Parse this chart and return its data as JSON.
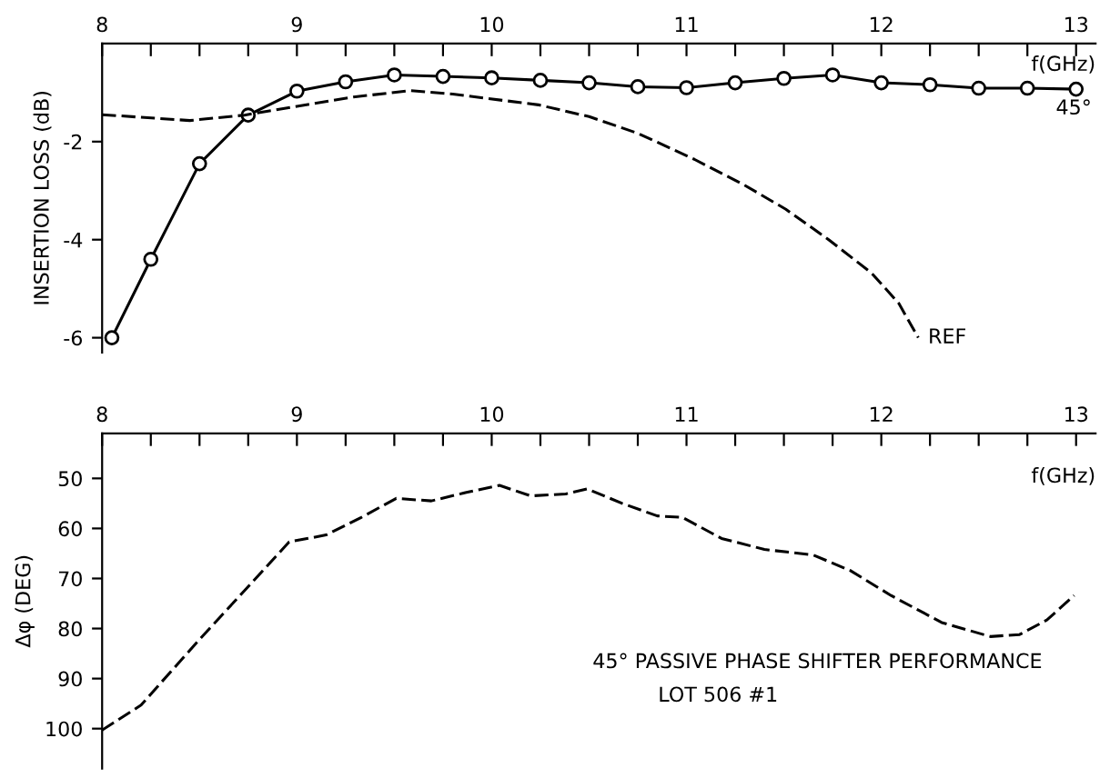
{
  "chart_data": [
    {
      "type": "line",
      "ylabel": "INSERTION LOSS (dB)",
      "xlabel": "f(GHz)",
      "xlim": [
        8,
        13.1
      ],
      "ylim": [
        -6.3,
        0
      ],
      "xticks": [
        8,
        {
          "value": 8.25,
          "label": null
        },
        {
          "value": 8.5,
          "label": null
        },
        {
          "value": 8.75,
          "label": null
        },
        9,
        {
          "value": 9.25,
          "label": null
        },
        {
          "value": 9.5,
          "label": null
        },
        {
          "value": 9.75,
          "label": null
        },
        10,
        {
          "value": 10.25,
          "label": null
        },
        {
          "value": 10.5,
          "label": null
        },
        {
          "value": 10.75,
          "label": null
        },
        11,
        {
          "value": 11.25,
          "label": null
        },
        {
          "value": 11.5,
          "label": null
        },
        {
          "value": 11.75,
          "label": null
        },
        12,
        {
          "value": 12.25,
          "label": null
        },
        {
          "value": 12.5,
          "label": null
        },
        {
          "value": 12.75,
          "label": null
        },
        13
      ],
      "yticks": [
        -2,
        -4,
        -6
      ],
      "grid": false,
      "legend": false,
      "series": [
        {
          "name": "45°",
          "color": "#000000",
          "marker": "circle",
          "line_style": "solid",
          "x": [
            8.05,
            8.25,
            8.5,
            8.75,
            9.0,
            9.25,
            9.5,
            9.75,
            10.0,
            10.25,
            10.5,
            10.75,
            11.0,
            11.25,
            11.5,
            11.75,
            12.0,
            12.25,
            12.5,
            12.75,
            13.0
          ],
          "values": [
            -6.0,
            -4.4,
            -2.45,
            -1.46,
            -0.97,
            -0.78,
            -0.64,
            -0.67,
            -0.7,
            -0.75,
            -0.8,
            -0.88,
            -0.9,
            -0.8,
            -0.71,
            -0.64,
            -0.8,
            -0.84,
            -0.91,
            -0.91,
            -0.93
          ]
        },
        {
          "name": "REF",
          "color": "#000000",
          "marker": "none",
          "line_style": "dashed",
          "x": [
            8.0,
            8.45,
            8.73,
            9.0,
            9.29,
            9.58,
            9.8,
            10.24,
            10.5,
            10.75,
            11.04,
            11.29,
            11.51,
            11.73,
            11.95,
            12.09,
            12.19
          ],
          "values": [
            -1.45,
            -1.57,
            -1.46,
            -1.28,
            -1.09,
            -0.96,
            -1.03,
            -1.25,
            -1.49,
            -1.83,
            -2.36,
            -2.87,
            -3.38,
            -4.0,
            -4.68,
            -5.3,
            -6.0
          ]
        }
      ]
    },
    {
      "type": "line",
      "ylabel": "Δφ (DEG)",
      "xlabel": "f(GHz)",
      "xlim": [
        8,
        13.1
      ],
      "ylim": [
        108,
        41
      ],
      "xticks": [
        8,
        {
          "value": 8.25,
          "label": null
        },
        {
          "value": 8.5,
          "label": null
        },
        {
          "value": 8.75,
          "label": null
        },
        9,
        {
          "value": 9.25,
          "label": null
        },
        {
          "value": 9.5,
          "label": null
        },
        {
          "value": 9.75,
          "label": null
        },
        10,
        {
          "value": 10.25,
          "label": null
        },
        {
          "value": 10.5,
          "label": null
        },
        {
          "value": 10.75,
          "label": null
        },
        11,
        {
          "value": 11.25,
          "label": null
        },
        {
          "value": 11.5,
          "label": null
        },
        {
          "value": 11.75,
          "label": null
        },
        12,
        {
          "value": 12.25,
          "label": null
        },
        {
          "value": 12.5,
          "label": null
        },
        {
          "value": 12.75,
          "label": null
        },
        13
      ],
      "yticks": [
        50,
        60,
        70,
        80,
        90,
        100
      ],
      "grid": false,
      "legend": false,
      "annotations": [
        "45° PASSIVE PHASE SHIFTER PERFORMANCE",
        "LOT 506 #1"
      ],
      "series": [
        {
          "color": "#000000",
          "marker": "none",
          "line_style": "dashed",
          "x": [
            8.0,
            8.2,
            8.49,
            8.76,
            8.96,
            9.15,
            9.33,
            9.51,
            9.69,
            9.87,
            10.04,
            10.2,
            10.38,
            10.49,
            10.67,
            10.85,
            10.98,
            11.18,
            11.4,
            11.65,
            11.84,
            12.05,
            12.31,
            12.56,
            12.71,
            12.85,
            12.99
          ],
          "values": [
            100.3,
            95.3,
            82.6,
            71.2,
            62.7,
            61.3,
            57.8,
            54.0,
            54.5,
            52.8,
            51.4,
            53.5,
            53.1,
            52.1,
            55.0,
            57.5,
            57.8,
            62.0,
            64.2,
            65.3,
            68.4,
            73.4,
            78.8,
            81.6,
            81.2,
            78.3,
            73.4
          ]
        }
      ]
    }
  ]
}
